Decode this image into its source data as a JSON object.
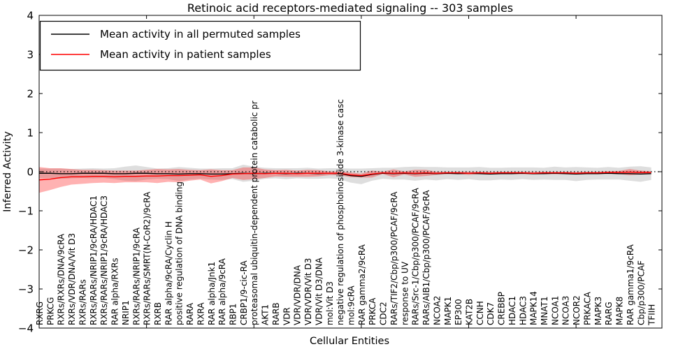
{
  "title": "Retinoic acid receptors-mediated signaling -- 303 samples",
  "axes": {
    "xlabel": "Cellular Entities",
    "ylabel": "Inferred Activity",
    "yticks": [
      "4",
      "3",
      "2",
      "1",
      "0",
      "−1",
      "−2",
      "−3",
      "−4"
    ],
    "ytick_values": [
      4,
      3,
      2,
      1,
      0,
      -1,
      -2,
      -3,
      -4
    ]
  },
  "legend": {
    "items": [
      {
        "label": "Mean activity in all permuted samples",
        "color": "#000000"
      },
      {
        "label": "Mean activity in patient samples",
        "color": "#ff0000"
      }
    ]
  },
  "chart_data": {
    "type": "line",
    "title": "Retinoic acid receptors-mediated signaling -- 303 samples",
    "xlabel": "Cellular Entities",
    "ylabel": "Inferred Activity",
    "ylim": [
      -4,
      4
    ],
    "grid": false,
    "zero_line": {
      "style": "dotted",
      "color": "#000000",
      "y": 0
    },
    "legend_position": "upper-left",
    "categories": [
      "RXRG",
      "PRKCG",
      "RXRs/RXRs/DNA/9cRA",
      "RXRs/VDR/DNA/Vit D3",
      "RXRs/RARs",
      "RXRs/RARs/NRIP1/9cRA/HDAC1",
      "RXRs/RARs/NRIP1/9cRA/HDAC3",
      "RAR alpha/RXRs",
      "NRIP1",
      "RXRs/RARs/NRIP1/9cRA",
      "RXRs/RARs/SMRT(N-CoR2)/9cRA",
      "RXRB",
      "RAR alpha/9cRA/Cyclin H",
      "positive regulation of DNA binding",
      "RARA",
      "RXRA",
      "RAR alpha/Jnk1",
      "RAR alpha/9cRA",
      "RBP1",
      "CRBP1/9-cic-RA",
      "proteasomal ubiquitin-dependent protein catabolic pr",
      "AKT1",
      "RARB",
      "VDR",
      "VDR/VDR/DNA",
      "VDR/VDR/Vit D3",
      "VDR/Vit D3/DNA",
      "mol:Vit D3",
      "negative regulation of phosphoinositide 3-kinase casc",
      "mol:9cRA",
      "RAR gamma2/9cRA",
      "PRKCA",
      "CDC2",
      "RARs/TIF2/Cbp/p300/PCAF/9cRA",
      "response to UV",
      "RARs/Src-1/Cbp/p300/PCAF/9cRA",
      "RARs/AIB1/Cbp/p300/PCAF/9cRA",
      "NCOA2",
      "MAPK1",
      "EP300",
      "KAT2B",
      "CCNH",
      "CDK7",
      "CREBBP",
      "HDAC1",
      "HDAC3",
      "MAPK14",
      "MNAT1",
      "NCOA1",
      "NCOA3",
      "NCOR2",
      "PRKACA",
      "MAPK3",
      "RARG",
      "MAPK8",
      "RAR gamma1/9cRA",
      "Cbp/p300/PCAF",
      "TFIIH"
    ],
    "series": [
      {
        "name": "Mean activity in all permuted samples",
        "color": "#000000",
        "band_color": "#000000",
        "band_opacity": 0.13,
        "values": [
          -0.04,
          -0.04,
          -0.05,
          -0.05,
          -0.04,
          -0.04,
          -0.04,
          -0.05,
          -0.05,
          -0.04,
          -0.04,
          -0.05,
          -0.05,
          -0.06,
          -0.05,
          -0.05,
          -0.06,
          -0.06,
          -0.05,
          -0.04,
          -0.05,
          -0.04,
          -0.04,
          -0.05,
          -0.04,
          -0.04,
          -0.05,
          -0.04,
          -0.05,
          -0.1,
          -0.12,
          -0.07,
          -0.04,
          -0.05,
          -0.04,
          -0.05,
          -0.04,
          -0.05,
          -0.04,
          -0.05,
          -0.04,
          -0.05,
          -0.06,
          -0.05,
          -0.05,
          -0.04,
          -0.05,
          -0.05,
          -0.04,
          -0.05,
          -0.06,
          -0.05,
          -0.05,
          -0.04,
          -0.05,
          -0.05,
          -0.06,
          -0.05
        ],
        "band_halfwidth": [
          0.12,
          0.12,
          0.13,
          0.12,
          0.12,
          0.13,
          0.12,
          0.14,
          0.18,
          0.2,
          0.16,
          0.13,
          0.14,
          0.18,
          0.15,
          0.13,
          0.14,
          0.15,
          0.14,
          0.22,
          0.18,
          0.14,
          0.13,
          0.14,
          0.13,
          0.14,
          0.13,
          0.13,
          0.14,
          0.18,
          0.2,
          0.16,
          0.14,
          0.15,
          0.16,
          0.18,
          0.16,
          0.17,
          0.15,
          0.16,
          0.15,
          0.17,
          0.16,
          0.15,
          0.16,
          0.15,
          0.16,
          0.15,
          0.17,
          0.16,
          0.18,
          0.16,
          0.15,
          0.16,
          0.15,
          0.18,
          0.2,
          0.16
        ]
      },
      {
        "name": "Mean activity in patient samples",
        "color": "#ff0000",
        "band_color": "#ff0000",
        "band_opacity": 0.3,
        "values": [
          -0.21,
          -0.19,
          -0.15,
          -0.13,
          -0.13,
          -0.12,
          -0.12,
          -0.13,
          -0.12,
          -0.12,
          -0.11,
          -0.11,
          -0.1,
          -0.1,
          -0.09,
          -0.08,
          -0.12,
          -0.1,
          -0.06,
          -0.05,
          -0.04,
          -0.05,
          -0.04,
          -0.04,
          -0.05,
          -0.04,
          -0.04,
          -0.04,
          -0.04,
          -0.08,
          -0.1,
          -0.06,
          -0.03,
          -0.04,
          -0.03,
          -0.04,
          -0.03,
          -0.04,
          -0.03,
          -0.03,
          -0.04,
          -0.03,
          -0.04,
          -0.03,
          -0.03,
          -0.03,
          -0.04,
          -0.03,
          -0.03,
          -0.03,
          -0.04,
          -0.03,
          -0.03,
          -0.02,
          -0.02,
          -0.01,
          -0.02,
          -0.02
        ],
        "band_halfwidth": [
          0.33,
          0.28,
          0.24,
          0.2,
          0.18,
          0.17,
          0.16,
          0.16,
          0.15,
          0.15,
          0.16,
          0.18,
          0.16,
          0.17,
          0.14,
          0.12,
          0.18,
          0.14,
          0.1,
          0.16,
          0.15,
          0.11,
          0.08,
          0.09,
          0.08,
          0.09,
          0.08,
          0.05,
          0.05,
          0.06,
          0.05,
          0.09,
          0.03,
          0.1,
          0.04,
          0.09,
          0.08,
          0.04,
          0.03,
          0.03,
          0.04,
          0.03,
          0.03,
          0.03,
          0.03,
          0.03,
          0.03,
          0.03,
          0.03,
          0.03,
          0.03,
          0.03,
          0.03,
          0.03,
          0.04,
          0.08,
          0.05,
          0.03
        ]
      }
    ]
  }
}
